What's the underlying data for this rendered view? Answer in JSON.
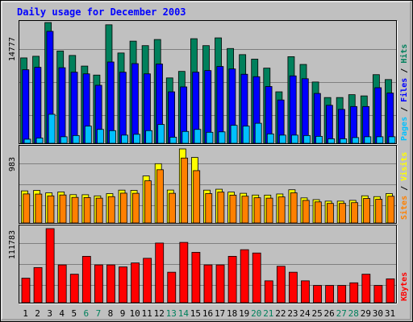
{
  "title": "Daily usage for December 2003",
  "colors": {
    "background": "#c0c0c0",
    "hits": "#00805c",
    "files": "#0000ff",
    "pages": "#00c0ff",
    "visits": "#ffff00",
    "sites": "#ff8000",
    "kbytes": "#ff0000",
    "title_text": "#0000ff",
    "weekend_label": "#00805c",
    "weekday_label": "#000000"
  },
  "chart_data": [
    {
      "type": "bar",
      "panel": "hits-files-pages",
      "ymax_label": "14777",
      "ymax": 14777,
      "categories": [
        "1",
        "2",
        "3",
        "4",
        "5",
        "6",
        "7",
        "8",
        "9",
        "10",
        "11",
        "12",
        "13",
        "14",
        "15",
        "16",
        "17",
        "18",
        "19",
        "20",
        "21",
        "22",
        "23",
        "24",
        "25",
        "26",
        "27",
        "28",
        "29",
        "30",
        "31"
      ],
      "weekend_days": [
        "6",
        "7",
        "13",
        "14",
        "20",
        "21",
        "27",
        "28"
      ],
      "legend": [
        "Pages",
        "Files",
        "Hits"
      ],
      "series": [
        {
          "name": "Hits",
          "values": [
            10450,
            10650,
            14777,
            11300,
            10750,
            9450,
            8350,
            14500,
            11050,
            12500,
            11950,
            12700,
            8000,
            8800,
            12800,
            11950,
            12900,
            11600,
            10850,
            10300,
            9200,
            6300,
            10600,
            9650,
            7500,
            5600,
            5600,
            5950,
            5800,
            8400,
            7800
          ]
        },
        {
          "name": "Files",
          "values": [
            9000,
            9300,
            13700,
            9250,
            8700,
            8500,
            7100,
            9950,
            8700,
            9750,
            8500,
            9700,
            6300,
            6900,
            8700,
            8900,
            9400,
            9100,
            8450,
            8150,
            6950,
            5300,
            8250,
            7900,
            6100,
            4650,
            4150,
            4500,
            4500,
            6800,
            6150
          ]
        },
        {
          "name": "Pages",
          "values": [
            500,
            650,
            3550,
            800,
            950,
            2100,
            1700,
            1550,
            1000,
            1100,
            1550,
            2300,
            750,
            1450,
            1700,
            1350,
            1400,
            2200,
            2100,
            2450,
            1150,
            1000,
            1000,
            950,
            850,
            550,
            550,
            700,
            800,
            800,
            800
          ]
        }
      ]
    },
    {
      "type": "bar",
      "panel": "sites-visits",
      "ymax_label": "983",
      "ymax": 983,
      "categories": [
        "1",
        "2",
        "3",
        "4",
        "5",
        "6",
        "7",
        "8",
        "9",
        "10",
        "11",
        "12",
        "13",
        "14",
        "15",
        "16",
        "17",
        "18",
        "19",
        "20",
        "21",
        "22",
        "23",
        "24",
        "25",
        "26",
        "27",
        "28",
        "29",
        "30",
        "31"
      ],
      "legend": [
        "Sites",
        "Visits"
      ],
      "series": [
        {
          "name": "Visits",
          "values": [
            426,
            432,
            400,
            412,
            376,
            375,
            360,
            390,
            436,
            433,
            624,
            787,
            437,
            983,
            870,
            436,
            448,
            410,
            394,
            371,
            370,
            385,
            441,
            333,
            310,
            290,
            290,
            300,
            361,
            350,
            390
          ]
        },
        {
          "name": "Sites",
          "values": [
            386,
            384,
            360,
            372,
            340,
            338,
            330,
            350,
            396,
            394,
            560,
            707,
            394,
            862,
            695,
            390,
            410,
            370,
            356,
            335,
            330,
            346,
            400,
            300,
            280,
            260,
            260,
            270,
            326,
            315,
            355
          ]
        }
      ]
    },
    {
      "type": "bar",
      "panel": "kbytes",
      "ymax_label": "111783",
      "ymax": 111783,
      "categories": [
        "1",
        "2",
        "3",
        "4",
        "5",
        "6",
        "7",
        "8",
        "9",
        "10",
        "11",
        "12",
        "13",
        "14",
        "15",
        "16",
        "17",
        "18",
        "19",
        "20",
        "21",
        "22",
        "23",
        "24",
        "25",
        "26",
        "27",
        "28",
        "29",
        "30",
        "31"
      ],
      "legend": [
        "KBytes"
      ],
      "series": [
        {
          "name": "KBytes",
          "values": [
            37000,
            53000,
            111783,
            57000,
            43000,
            70000,
            57000,
            57000,
            54000,
            60000,
            67000,
            90000,
            46000,
            91000,
            76000,
            57000,
            57000,
            70000,
            80000,
            75000,
            33000,
            55000,
            46000,
            33000,
            26000,
            26000,
            26000,
            30000,
            43000,
            26000,
            36000
          ]
        }
      ]
    }
  ]
}
